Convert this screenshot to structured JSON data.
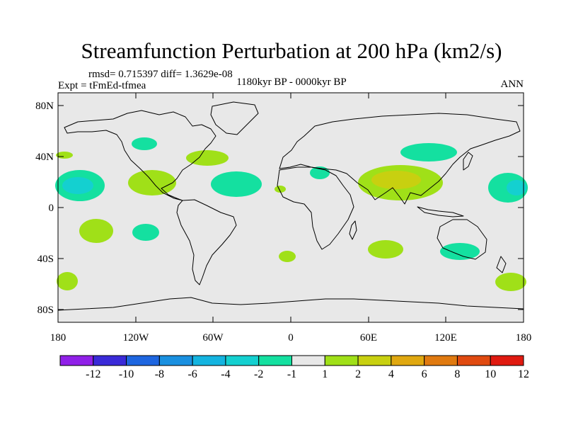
{
  "title": "Streamfunction Perturbation at 200 hPa (km2/s)",
  "stats": "rmsd= 0.715397 diff= 1.3629e-08",
  "experiment": "Expt = tFmEd-tfmea",
  "period": "1180kyr BP - 0000kyr BP",
  "season": "ANN",
  "lat_ticks": [
    "80N",
    "40N",
    "0",
    "40S",
    "80S"
  ],
  "lon_ticks": [
    "180",
    "120W",
    "60W",
    "0",
    "60E",
    "120E",
    "180"
  ],
  "colorbar": {
    "labels": [
      "-12",
      "-10",
      "-8",
      "-6",
      "-4",
      "-2",
      "-1",
      "1",
      "2",
      "4",
      "6",
      "8",
      "10",
      "12"
    ],
    "colors": [
      "#9020e8",
      "#3a2ad8",
      "#1e66e0",
      "#1a90e0",
      "#14b4e0",
      "#14d0d0",
      "#14e0a0",
      "#e8e8e8",
      "#a0e018",
      "#c8d010",
      "#e0a810",
      "#e07a10",
      "#e04a10",
      "#e01a10"
    ]
  },
  "colors": {
    "background": "#e8e8e8",
    "coast": "#000000"
  },
  "chart_data": {
    "type": "map-contour",
    "variable": "Streamfunction Perturbation",
    "level_hPa": 200,
    "units": "km2/s",
    "lon_range": [
      -180,
      180
    ],
    "lat_range": [
      -90,
      90
    ],
    "anomalies": [
      {
        "region": "central North Pacific (about 20N, 180)",
        "range": "-4 to -1"
      },
      {
        "region": "subtropical NE Pacific (about 20N, 130W)",
        "range": "1 to 2"
      },
      {
        "region": "subtropical North Atlantic (about 15N, 30W)",
        "range": "-2 to -1"
      },
      {
        "region": "southern Asia / Tibetan Plateau (about 25N, 80E)",
        "range": "2 to 4"
      },
      {
        "region": "North Pacific near Japan (about 45N, 120E)",
        "range": "-2 to -1"
      },
      {
        "region": "eastern USA (about 40N, 65W)",
        "range": "1 to 2"
      },
      {
        "region": "Australia (about 30S, 130E)",
        "range": "-2 to -1"
      },
      {
        "region": "South Pacific (about 20S, 150W)",
        "range": "1 to 2"
      },
      {
        "region": "South Atlantic (about 30S, 55E)",
        "range": "1 to 2"
      }
    ]
  }
}
